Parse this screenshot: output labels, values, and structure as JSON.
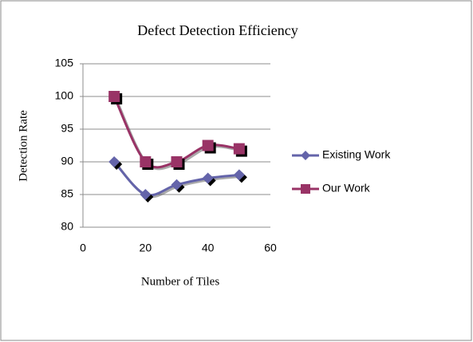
{
  "chart_data": {
    "type": "line",
    "title": "Defect Detection Efficiency",
    "x_label": "Number of Tiles",
    "y_label": "Detection Rate",
    "x": [
      10,
      20,
      30,
      40,
      50
    ],
    "series": [
      {
        "name": "Existing Work",
        "color": "#6464aa",
        "marker": "diamond",
        "values": [
          90,
          85,
          86.5,
          87.5,
          88
        ]
      },
      {
        "name": "Our Work",
        "color": "#993366",
        "marker": "square",
        "values": [
          100,
          90,
          90,
          92.5,
          92
        ]
      }
    ],
    "xlim": [
      0,
      60
    ],
    "xticks": [
      0,
      20,
      40,
      60
    ],
    "ylim": [
      80,
      105
    ],
    "yticks": [
      80,
      85,
      90,
      95,
      100,
      105
    ],
    "grid": true,
    "legend": "right"
  }
}
